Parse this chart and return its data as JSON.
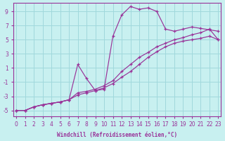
{
  "xlabel": "Windchill (Refroidissement éolien,°C)",
  "bg_color": "#c8f0f0",
  "line_color": "#993399",
  "grid_color": "#a0d8dc",
  "xlim": [
    -0.3,
    23.3
  ],
  "ylim": [
    -5.8,
    10.2
  ],
  "xticks": [
    0,
    1,
    2,
    3,
    4,
    5,
    6,
    7,
    8,
    9,
    10,
    11,
    12,
    13,
    14,
    15,
    16,
    17,
    18,
    19,
    20,
    21,
    22,
    23
  ],
  "yticks": [
    -5,
    -3,
    -1,
    1,
    3,
    5,
    7,
    9
  ],
  "line1_x": [
    0,
    1,
    2,
    3,
    4,
    5,
    6,
    7,
    8,
    9,
    10,
    11,
    12,
    13,
    14,
    15,
    16,
    17,
    18,
    19,
    20,
    21,
    22,
    23
  ],
  "line1_y": [
    -5,
    -5,
    -4.5,
    -4.2,
    -4.0,
    -3.8,
    -3.5,
    1.5,
    -0.5,
    -2.2,
    -2.0,
    5.5,
    8.5,
    9.7,
    9.3,
    9.5,
    9.0,
    6.5,
    6.2,
    6.5,
    6.8,
    6.6,
    6.4,
    6.2
  ],
  "line2_x": [
    0,
    1,
    2,
    3,
    4,
    5,
    6,
    7,
    8,
    9,
    10,
    11,
    12,
    13,
    14,
    15,
    16,
    17,
    18,
    19,
    20,
    21,
    22,
    23
  ],
  "line2_y": [
    -5,
    -5,
    -4.5,
    -4.2,
    -4.0,
    -3.8,
    -3.5,
    -2.5,
    -2.3,
    -2.0,
    -1.5,
    -0.8,
    0.5,
    1.5,
    2.5,
    3.2,
    4.0,
    4.5,
    5.0,
    5.3,
    5.7,
    6.0,
    6.5,
    5.0
  ],
  "line3_x": [
    0,
    1,
    2,
    3,
    4,
    5,
    6,
    7,
    8,
    9,
    10,
    11,
    12,
    13,
    14,
    15,
    16,
    17,
    18,
    19,
    20,
    21,
    22,
    23
  ],
  "line3_y": [
    -5,
    -5,
    -4.5,
    -4.2,
    -4.0,
    -3.8,
    -3.5,
    -2.8,
    -2.5,
    -2.2,
    -1.8,
    -1.2,
    -0.3,
    0.5,
    1.5,
    2.5,
    3.3,
    4.0,
    4.5,
    4.8,
    5.0,
    5.2,
    5.5,
    5.0
  ]
}
